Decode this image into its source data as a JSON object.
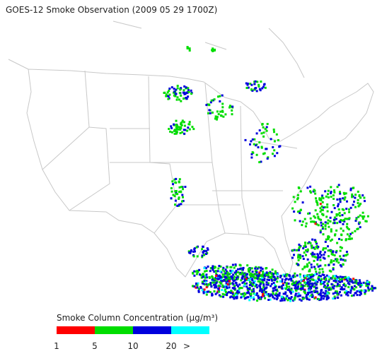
{
  "title": "GOES-12 Smoke Observation (2009 05 29  1700Z)",
  "legend": {
    "title": "Smoke Column Concentration (μg/m³)",
    "colors": [
      "#ff0000",
      "#00dd00",
      "#0000dd",
      "#00ffff"
    ],
    "ticks": [
      1,
      5,
      10,
      20,
      ">"
    ]
  }
}
